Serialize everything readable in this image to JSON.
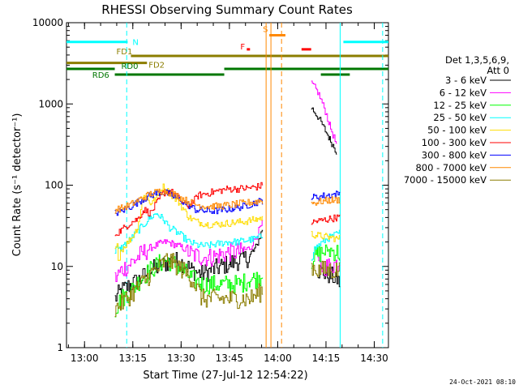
{
  "chart_data": {
    "type": "line",
    "title": "RHESSI Observing Summary Count Rates",
    "xlabel": "Start Time (27-Jul-12 12:54:22)",
    "ylabel": "Count Rate (s⁻¹ detector⁻¹)",
    "yscale": "log",
    "ylim": [
      1,
      10000
    ],
    "xlim_minutes": [
      0,
      100
    ],
    "y_ticks": [
      {
        "value": 1,
        "label": "1"
      },
      {
        "value": 10,
        "label": "10"
      },
      {
        "value": 100,
        "label": "100"
      },
      {
        "value": 1000,
        "label": "1000"
      },
      {
        "value": 10000,
        "label": "10000"
      }
    ],
    "x_ticks": [
      {
        "t": 5.6,
        "label": "13:00"
      },
      {
        "t": 20.6,
        "label": "13:15"
      },
      {
        "t": 35.6,
        "label": "13:30"
      },
      {
        "t": 50.6,
        "label": "13:45"
      },
      {
        "t": 65.6,
        "label": "14:00"
      },
      {
        "t": 80.6,
        "label": "14:15"
      },
      {
        "t": 95.6,
        "label": "14:30"
      }
    ],
    "legend": {
      "header": [
        "Det 1,3,5,6,9,",
        "Att 0"
      ],
      "position": "right"
    },
    "timestamp": "24-Oct-2021 08:10",
    "series": [
      {
        "name": "3 - 6 keV",
        "color": "#000000",
        "segments": [
          [
            [
              15,
              4
            ],
            [
              17,
              5
            ],
            [
              20,
              6
            ],
            [
              23,
              7
            ],
            [
              26,
              9
            ],
            [
              29,
              10
            ],
            [
              31,
              11
            ],
            [
              33,
              12
            ],
            [
              36,
              11
            ],
            [
              39,
              9
            ],
            [
              42,
              8
            ],
            [
              45,
              9
            ],
            [
              48,
              10
            ],
            [
              51,
              11
            ],
            [
              54,
              12
            ],
            [
              57,
              13
            ],
            [
              59,
              18
            ],
            [
              61,
              30
            ]
          ],
          [
            [
              76,
              900
            ],
            [
              78,
              700
            ],
            [
              80,
              500
            ],
            [
              82,
              350
            ],
            [
              84,
              250
            ]
          ],
          [
            [
              78,
              9
            ],
            [
              81,
              8
            ],
            [
              84,
              7
            ],
            [
              85,
              6
            ]
          ]
        ]
      },
      {
        "name": "6 - 12 keV",
        "color": "#ff00ff",
        "segments": [
          [
            [
              15,
              7
            ],
            [
              17,
              9
            ],
            [
              20,
              11
            ],
            [
              23,
              14
            ],
            [
              26,
              17
            ],
            [
              29,
              19
            ],
            [
              31,
              20
            ],
            [
              33,
              19
            ],
            [
              36,
              17
            ],
            [
              39,
              14
            ],
            [
              42,
              13
            ],
            [
              45,
              13
            ],
            [
              48,
              14
            ],
            [
              51,
              15
            ],
            [
              54,
              15
            ],
            [
              57,
              17
            ],
            [
              59,
              24
            ],
            [
              61,
              35
            ]
          ],
          [
            [
              76,
              1800
            ],
            [
              78,
              1400
            ],
            [
              80,
              900
            ],
            [
              82,
              500
            ],
            [
              84,
              300
            ]
          ],
          [
            [
              78,
              10
            ],
            [
              81,
              10
            ],
            [
              84,
              11
            ],
            [
              85,
              12
            ]
          ]
        ]
      },
      {
        "name": "12 - 25 keV",
        "color": "#00ff00",
        "segments": [
          [
            [
              15,
              3
            ],
            [
              17,
              4
            ],
            [
              20,
              5
            ],
            [
              23,
              7
            ],
            [
              26,
              9
            ],
            [
              29,
              11
            ],
            [
              31,
              12
            ],
            [
              33,
              11
            ],
            [
              36,
              9
            ],
            [
              39,
              7
            ],
            [
              42,
              6
            ],
            [
              45,
              6
            ],
            [
              48,
              6
            ],
            [
              51,
              6
            ],
            [
              54,
              6
            ],
            [
              57,
              7
            ],
            [
              59,
              7
            ],
            [
              61,
              8
            ]
          ],
          [
            [
              76,
              12
            ],
            [
              78,
              14
            ],
            [
              81,
              16
            ],
            [
              84,
              15
            ],
            [
              85,
              14
            ]
          ]
        ]
      },
      {
        "name": "25 - 50 keV",
        "color": "#00ffff",
        "segments": [
          [
            [
              15,
              14
            ],
            [
              17,
              17
            ],
            [
              20,
              22
            ],
            [
              23,
              30
            ],
            [
              26,
              40
            ],
            [
              28,
              45
            ],
            [
              30,
              38
            ],
            [
              32,
              30
            ],
            [
              35,
              25
            ],
            [
              38,
              20
            ],
            [
              41,
              18
            ],
            [
              44,
              18
            ],
            [
              47,
              19
            ],
            [
              50,
              20
            ],
            [
              53,
              20
            ],
            [
              56,
              21
            ],
            [
              59,
              22
            ],
            [
              61,
              24
            ]
          ],
          [
            [
              76,
              15
            ],
            [
              78,
              18
            ],
            [
              81,
              22
            ],
            [
              84,
              25
            ],
            [
              85,
              26
            ]
          ]
        ]
      },
      {
        "name": "50 - 100 keV",
        "color": "#ffdd00",
        "segments": [
          [
            [
              15,
              15
            ],
            [
              17,
              16
            ],
            [
              20,
              22
            ],
            [
              22,
              30
            ],
            [
              24,
              80
            ],
            [
              26,
              60
            ],
            [
              28,
              70
            ],
            [
              30,
              95
            ],
            [
              32,
              80
            ],
            [
              35,
              60
            ],
            [
              38,
              40
            ],
            [
              41,
              35
            ],
            [
              44,
              33
            ],
            [
              47,
              33
            ],
            [
              50,
              34
            ],
            [
              53,
              35
            ],
            [
              56,
              36
            ],
            [
              59,
              38
            ],
            [
              61,
              40
            ]
          ],
          [
            [
              76,
              25
            ],
            [
              78,
              24
            ],
            [
              81,
              23
            ],
            [
              84,
              22
            ],
            [
              85,
              22
            ]
          ]
        ]
      },
      {
        "name": "100 - 300 keV",
        "color": "#ff0000",
        "segments": [
          [
            [
              15,
              25
            ],
            [
              17,
              28
            ],
            [
              20,
              35
            ],
            [
              22,
              38
            ],
            [
              24,
              50
            ],
            [
              26,
              45
            ],
            [
              28,
              60
            ],
            [
              30,
              80
            ],
            [
              32,
              85
            ],
            [
              34,
              75
            ],
            [
              36,
              60
            ],
            [
              38,
              55
            ],
            [
              41,
              75
            ],
            [
              44,
              80
            ],
            [
              47,
              85
            ],
            [
              50,
              90
            ],
            [
              53,
              90
            ],
            [
              56,
              92
            ],
            [
              59,
              95
            ],
            [
              61,
              100
            ]
          ],
          [
            [
              76,
              35
            ],
            [
              78,
              36
            ],
            [
              81,
              38
            ],
            [
              84,
              40
            ],
            [
              85,
              40
            ]
          ]
        ]
      },
      {
        "name": "300 - 800 keV",
        "color": "#0000ff",
        "segments": [
          [
            [
              15,
              45
            ],
            [
              17,
              48
            ],
            [
              20,
              55
            ],
            [
              23,
              65
            ],
            [
              26,
              75
            ],
            [
              29,
              82
            ],
            [
              31,
              80
            ],
            [
              34,
              70
            ],
            [
              37,
              60
            ],
            [
              40,
              50
            ],
            [
              43,
              48
            ],
            [
              46,
              48
            ],
            [
              49,
              50
            ],
            [
              52,
              52
            ],
            [
              55,
              55
            ],
            [
              58,
              60
            ],
            [
              61,
              65
            ]
          ],
          [
            [
              76,
              70
            ],
            [
              78,
              72
            ],
            [
              81,
              75
            ],
            [
              84,
              78
            ],
            [
              85,
              80
            ]
          ]
        ]
      },
      {
        "name": "800 - 7000 keV",
        "color": "#ff8800",
        "segments": [
          [
            [
              15,
              50
            ],
            [
              17,
              52
            ],
            [
              20,
              58
            ],
            [
              23,
              68
            ],
            [
              26,
              78
            ],
            [
              29,
              85
            ],
            [
              31,
              84
            ],
            [
              34,
              75
            ],
            [
              37,
              65
            ],
            [
              40,
              58
            ],
            [
              43,
              55
            ],
            [
              46,
              55
            ],
            [
              49,
              56
            ],
            [
              52,
              58
            ],
            [
              55,
              60
            ],
            [
              58,
              62
            ],
            [
              61,
              65
            ]
          ],
          [
            [
              76,
              60
            ],
            [
              78,
              62
            ],
            [
              81,
              65
            ],
            [
              84,
              66
            ],
            [
              85,
              66
            ]
          ]
        ]
      },
      {
        "name": "7000 - 15000 keV",
        "color": "#8b7d00",
        "segments": [
          [
            [
              15,
              3
            ],
            [
              17,
              3.5
            ],
            [
              20,
              4.5
            ],
            [
              23,
              6
            ],
            [
              26,
              8
            ],
            [
              29,
              10
            ],
            [
              31,
              12
            ],
            [
              33,
              11
            ],
            [
              36,
              9
            ],
            [
              39,
              7
            ],
            [
              42,
              4
            ],
            [
              45,
              4
            ],
            [
              48,
              4
            ],
            [
              51,
              4
            ],
            [
              54,
              4
            ],
            [
              57,
              4
            ],
            [
              59,
              4.5
            ],
            [
              61,
              5
            ]
          ],
          [
            [
              76,
              10
            ],
            [
              78,
              9
            ],
            [
              81,
              9
            ],
            [
              84,
              9
            ],
            [
              85,
              9
            ]
          ]
        ]
      }
    ],
    "state_bars": [
      {
        "label": "N",
        "color": "#00ffff",
        "y": 5800,
        "segments": [
          [
            0,
            19
          ],
          [
            86,
            100
          ]
        ]
      },
      {
        "label": "S",
        "color": "#ff8800",
        "y": 7000,
        "segments": [
          [
            63,
            68
          ]
        ]
      },
      {
        "label": "F",
        "color": "#ff0000",
        "y": 4700,
        "segments": [
          [
            56,
            57
          ],
          [
            73,
            76
          ]
        ]
      },
      {
        "label": "FD1",
        "color": "#8b7d00",
        "y": 3900,
        "segments": [
          [
            20,
            100
          ]
        ]
      },
      {
        "label": "FD2",
        "color": "#8b7d00",
        "y": 3200,
        "segments": [
          [
            0,
            25
          ]
        ]
      },
      {
        "label": "RD0",
        "color": "#007700",
        "y": 2700,
        "segments": [
          [
            0,
            15
          ],
          [
            49,
            100
          ]
        ]
      },
      {
        "label": "RD6",
        "color": "#007700",
        "y": 2300,
        "segments": [
          [
            15,
            49
          ],
          [
            79,
            88
          ]
        ]
      }
    ],
    "vertical_markers": [
      {
        "t": 18.7,
        "color": "#00ffff",
        "style": "dashed"
      },
      {
        "t": 85.0,
        "color": "#00ffff",
        "style": "solid"
      },
      {
        "t": 98.2,
        "color": "#00ffff",
        "style": "dashed"
      },
      {
        "t": 66.8,
        "color": "#ff8800",
        "style": "dashed"
      },
      {
        "t": 62.0,
        "color": "#ff8800",
        "style": "solid"
      },
      {
        "t": 63.5,
        "color": "#ff8800",
        "style": "solid"
      }
    ]
  }
}
